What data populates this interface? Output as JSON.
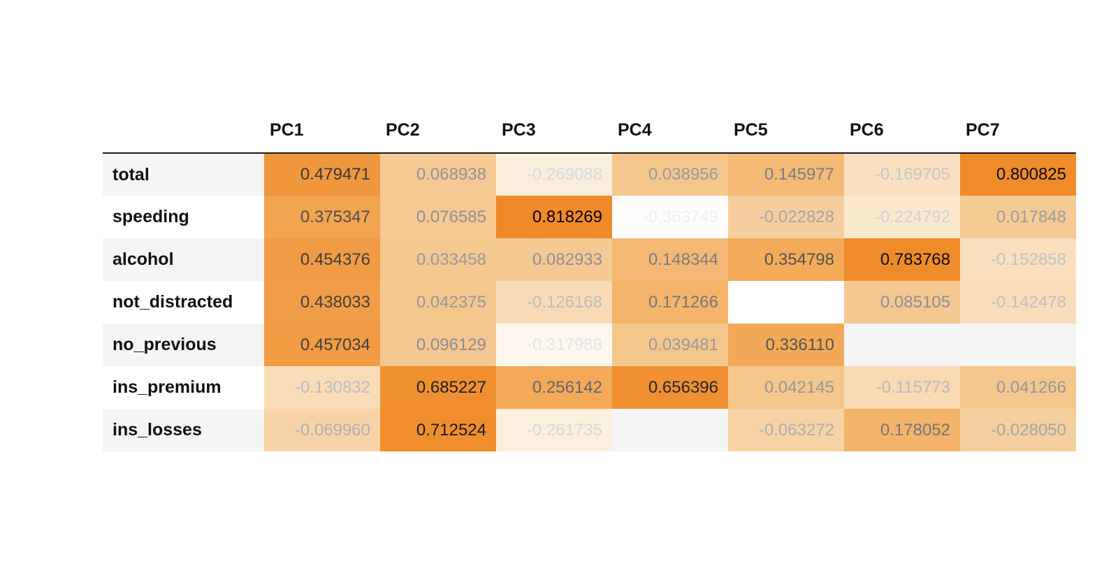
{
  "page": {
    "background": "#ffffff",
    "description": "Styled dataframe heatmap of PCA component loadings"
  },
  "chart_data": {
    "type": "heatmap",
    "columns": [
      "PC1",
      "PC2",
      "PC3",
      "PC4",
      "PC5",
      "PC6",
      "PC7"
    ],
    "row_labels": [
      "total",
      "speeding",
      "alcohol",
      "not_distracted",
      "no_previous",
      "ins_premium",
      "ins_losses"
    ],
    "values": [
      [
        0.479471,
        0.068938,
        -0.269088,
        0.038956,
        0.145977,
        -0.169705,
        0.800825
      ],
      [
        0.375347,
        0.076585,
        0.818269,
        -0.363749,
        -0.022828,
        -0.224792,
        0.017848
      ],
      [
        0.454376,
        0.033458,
        0.082933,
        0.148344,
        0.354798,
        0.783768,
        -0.152858
      ],
      [
        0.438033,
        0.042375,
        -0.126168,
        0.171266,
        null,
        0.085105,
        -0.142478
      ],
      [
        0.457034,
        0.096129,
        -0.317988,
        0.039481,
        0.33611,
        null,
        null
      ],
      [
        -0.130832,
        0.685227,
        0.256142,
        0.656396,
        0.042145,
        -0.115773,
        0.041266
      ],
      [
        -0.06996,
        0.712524,
        -0.261735,
        null,
        -0.063272,
        0.178052,
        -0.02805
      ]
    ],
    "colormap": "white-to-orange background gradient, light-to-black text gradient",
    "colormap_min_color": "#ffffff",
    "colormap_max_color": "#ef8a28",
    "vmin": -0.363749,
    "vmax": 0.818269,
    "legend": "none",
    "grid": "off"
  },
  "table": {
    "columns": [
      "PC1",
      "PC2",
      "PC3",
      "PC4",
      "PC5",
      "PC6",
      "PC7"
    ],
    "stripe_odd_color": "#f5f5f5",
    "stripe_even_color": "#ffffff",
    "header_rule_color": "#1a1a1a",
    "rows": [
      {
        "label": "total",
        "cells": [
          {
            "v": "0.479471",
            "bg": "#f0973e",
            "fg": "#37383a"
          },
          {
            "v": "0.068938",
            "bg": "#f6c994",
            "fg": "#909398"
          },
          {
            "v": "-0.269088",
            "bg": "#f9eedc",
            "fg": "#d8dadc"
          },
          {
            "v": "0.038956",
            "bg": "#f5c78d",
            "fg": "#96989c"
          },
          {
            "v": "0.145977",
            "bg": "#f4ba76",
            "fg": "#7b7e82"
          },
          {
            "v": "-0.169705",
            "bg": "#f9e0c0",
            "fg": "#c3c6c9"
          },
          {
            "v": "0.800825",
            "bg": "#ef8b29",
            "fg": "#0a0a0a"
          }
        ]
      },
      {
        "label": "speeding",
        "cells": [
          {
            "v": "0.375347",
            "bg": "#f2a44f",
            "fg": "#4e5052"
          },
          {
            "v": "0.076585",
            "bg": "#f6c892",
            "fg": "#8e9195"
          },
          {
            "v": "0.818269",
            "bg": "#ef8a28",
            "fg": "#000000"
          },
          {
            "v": "-0.363749",
            "bg": "#fefdfb",
            "fg": "#edeff1"
          },
          {
            "v": "-0.022828",
            "bg": "#f6ce9d",
            "fg": "#a1a4a8"
          },
          {
            "v": "-0.224792",
            "bg": "#fae9cd",
            "fg": "#ced1d4"
          },
          {
            "v": "0.017848",
            "bg": "#f6ca93",
            "fg": "#999ca0"
          }
        ]
      },
      {
        "label": "alcohol",
        "cells": [
          {
            "v": "0.454376",
            "bg": "#f19b44",
            "fg": "#3d3e40"
          },
          {
            "v": "0.033458",
            "bg": "#f5c88e",
            "fg": "#97999d"
          },
          {
            "v": "0.082933",
            "bg": "#f5c791",
            "fg": "#8d9094"
          },
          {
            "v": "0.148344",
            "bg": "#f4b874",
            "fg": "#797c80"
          },
          {
            "v": "0.354798",
            "bg": "#f3ab59",
            "fg": "#515356"
          },
          {
            "v": "0.783768",
            "bg": "#ef8b29",
            "fg": "#0c0c0c"
          },
          {
            "v": "-0.152858",
            "bg": "#f9dfbd",
            "fg": "#c0c3c6"
          }
        ]
      },
      {
        "label": "not_distracted",
        "cells": [
          {
            "v": "0.438033",
            "bg": "#f19d47",
            "fg": "#3f4143"
          },
          {
            "v": "0.042375",
            "bg": "#f5c78c",
            "fg": "#95979b"
          },
          {
            "v": "-0.126168",
            "bg": "#f8dbb6",
            "fg": "#babdc1"
          },
          {
            "v": "0.171266",
            "bg": "#f4b46c",
            "fg": "#74777b"
          },
          {
            "v": "",
            "bg": "#ffffff",
            "fg": "#000000"
          },
          {
            "v": "0.085105",
            "bg": "#f5c791",
            "fg": "#8c8f93"
          },
          {
            "v": "-0.142478",
            "bg": "#f9ddba",
            "fg": "#bdc0c4"
          }
        ]
      },
      {
        "label": "no_previous",
        "cells": [
          {
            "v": "0.457034",
            "bg": "#f19b43",
            "fg": "#3c3d3f"
          },
          {
            "v": "0.096129",
            "bg": "#f5c68f",
            "fg": "#8a8d91"
          },
          {
            "v": "-0.317988",
            "bg": "#fdf7ee",
            "fg": "#e2e4e6"
          },
          {
            "v": "0.039481",
            "bg": "#f5c78d",
            "fg": "#96989c"
          },
          {
            "v": "0.336110",
            "bg": "#f2a957",
            "fg": "#545659"
          },
          {
            "v": "",
            "bg": "#f5f5f5",
            "fg": "#000000"
          },
          {
            "v": "",
            "bg": "#f5f5f5",
            "fg": "#000000"
          }
        ]
      },
      {
        "label": "ins_premium",
        "cells": [
          {
            "v": "-0.130832",
            "bg": "#f8dcb8",
            "fg": "#bbbec2"
          },
          {
            "v": "0.685227",
            "bg": "#f08f30",
            "fg": "#1e1f20"
          },
          {
            "v": "0.256142",
            "bg": "#f3a958",
            "fg": "#636568"
          },
          {
            "v": "0.656396",
            "bg": "#f09032",
            "fg": "#232425"
          },
          {
            "v": "0.042145",
            "bg": "#f5c78c",
            "fg": "#95979b"
          },
          {
            "v": "-0.115773",
            "bg": "#f8dab3",
            "fg": "#b7babe"
          },
          {
            "v": "0.041266",
            "bg": "#f5c78c",
            "fg": "#95979b"
          }
        ]
      },
      {
        "label": "ins_losses",
        "cells": [
          {
            "v": "-0.069960",
            "bg": "#f7d4a7",
            "fg": "#adb0b4"
          },
          {
            "v": "0.712524",
            "bg": "#f08e2d",
            "fg": "#18191a"
          },
          {
            "v": "-0.261735",
            "bg": "#fbefde",
            "fg": "#d6d8da"
          },
          {
            "v": "",
            "bg": "#f5f5f5",
            "fg": "#000000"
          },
          {
            "v": "-0.063272",
            "bg": "#f7d3a5",
            "fg": "#abaeb2"
          },
          {
            "v": "0.178052",
            "bg": "#f4b36a",
            "fg": "#727578"
          },
          {
            "v": "-0.028050",
            "bg": "#f6cf9e",
            "fg": "#a2a5a9"
          }
        ]
      }
    ]
  }
}
